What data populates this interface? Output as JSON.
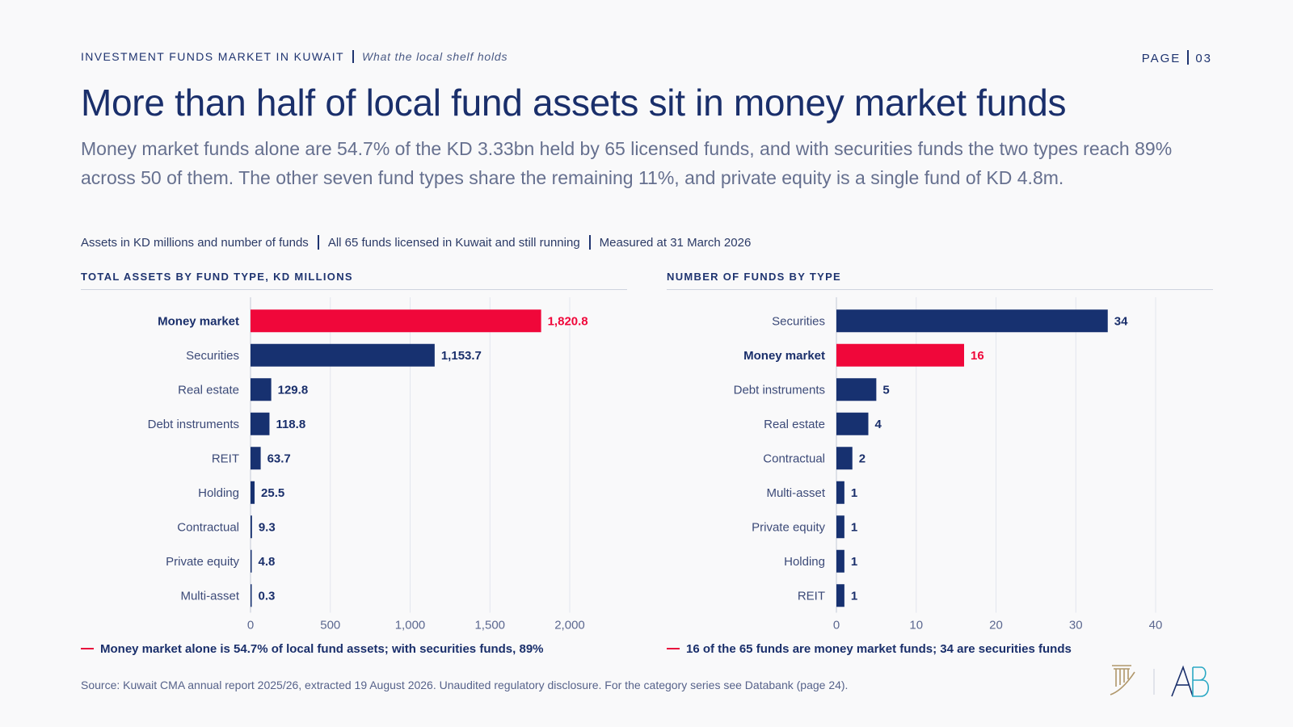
{
  "header": {
    "kicker": "Investment funds market in Kuwait",
    "kicker_sub": "What the local shelf holds",
    "page_label": "PAGE",
    "page_number": "03"
  },
  "title": "More than half of local fund assets sit in money market funds",
  "lede": "Money market funds alone are 54.7% of the KD 3.33bn held by 65 licensed funds, and with securities funds the two types reach 89% across 50 of them. The other seven fund types share the remaining 11%, and private equity is a single fund of KD 4.8m.",
  "meta": [
    "Assets in KD millions and number of funds",
    "All 65 funds licensed in Kuwait and still running",
    "Measured at 31 March 2026"
  ],
  "colors": {
    "highlight": "#f0073a",
    "base": "#173170",
    "grid": "#e3e6ee",
    "text": "#1a2f6b"
  },
  "chart_data": [
    {
      "type": "bar",
      "orientation": "horizontal",
      "title": "Total assets by fund type, KD millions",
      "categories": [
        "Money market",
        "Securities",
        "Real estate",
        "Debt instruments",
        "REIT",
        "Holding",
        "Contractual",
        "Private equity",
        "Multi-asset"
      ],
      "values": [
        1820.8,
        1153.7,
        129.8,
        118.8,
        63.7,
        25.5,
        9.3,
        4.8,
        0.3
      ],
      "value_labels": [
        "1,820.8",
        "1,153.7",
        "129.8",
        "118.8",
        "63.7",
        "25.5",
        "9.3",
        "4.8",
        "0.3"
      ],
      "highlight": "Money market",
      "xlim": [
        0,
        2000
      ],
      "ticks": [
        0,
        500,
        1000,
        1500,
        2000
      ],
      "tick_labels": [
        "0",
        "500",
        "1,000",
        "1,500",
        "2,000"
      ],
      "grid": true,
      "note": "Money market alone is 54.7% of local fund assets; with securities funds, 89%"
    },
    {
      "type": "bar",
      "orientation": "horizontal",
      "title": "Number of funds by type",
      "categories": [
        "Securities",
        "Money market",
        "Debt instruments",
        "Real estate",
        "Contractual",
        "Multi-asset",
        "Private equity",
        "Holding",
        "REIT"
      ],
      "values": [
        34,
        16,
        5,
        4,
        2,
        1,
        1,
        1,
        1
      ],
      "value_labels": [
        "34",
        "16",
        "5",
        "4",
        "2",
        "1",
        "1",
        "1",
        "1"
      ],
      "highlight": "Money market",
      "xlim": [
        0,
        40
      ],
      "ticks": [
        0,
        10,
        20,
        30,
        40
      ],
      "tick_labels": [
        "0",
        "10",
        "20",
        "30",
        "40"
      ],
      "grid": true,
      "note": "16 of the 65 funds are money market funds; 34 are securities funds"
    }
  ],
  "source": "Source: Kuwait CMA annual report 2025/26, extracted 19 August 2026. Unaudited regulatory disclosure. For the category series see Databank (page 24)."
}
